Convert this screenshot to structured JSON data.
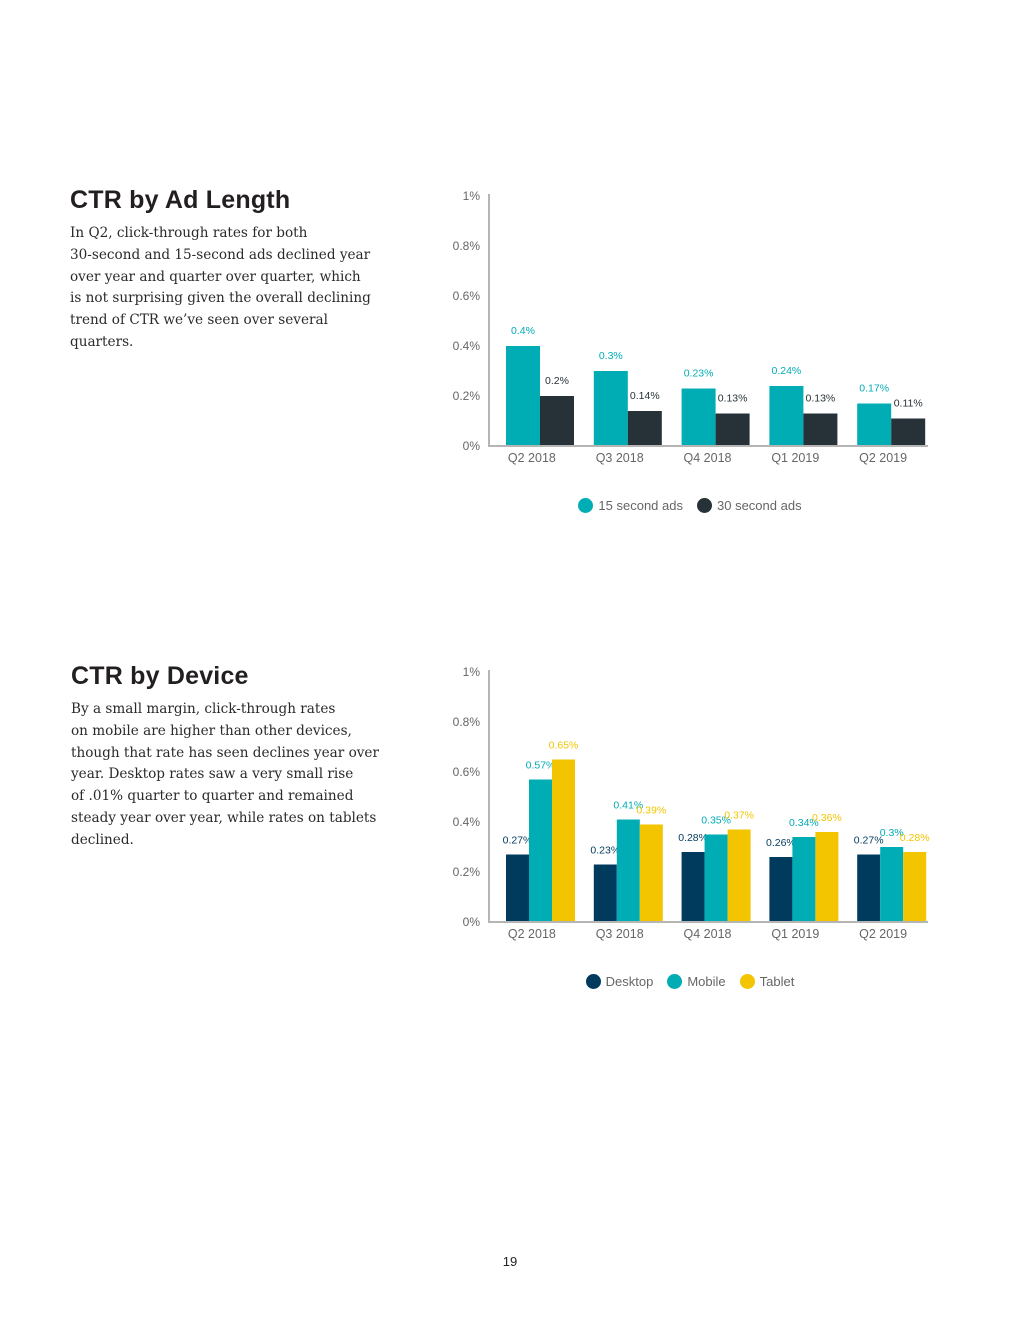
{
  "sections": [
    {
      "title": "CTR by Ad Length",
      "body": "In Q2, click-through rates for both\n30-second and 15-second ads declined year\nover year and quarter over quarter, which\nis not surprising given the overall declining\ntrend of CTR we’ve seen over several\nquarters."
    },
    {
      "title": "CTR by Device",
      "body": "By a small margin, click-through rates\non mobile are higher than other devices,\nthough that rate has seen declines year over\nyear. Desktop rates saw a very small rise\nof .01% quarter to quarter and remained\nsteady year over year, while rates on tablets\ndeclined."
    }
  ],
  "page_number": "19",
  "chart_data": [
    {
      "type": "bar",
      "title": "",
      "xlabel": "",
      "ylabel": "",
      "ylim": [
        0,
        1
      ],
      "yticks": [
        0,
        0.2,
        0.4,
        0.6,
        0.8,
        1
      ],
      "ytick_labels": [
        "0%",
        "0.2%",
        "0.4%",
        "0.6%",
        "0.8%",
        "1%"
      ],
      "categories": [
        "Q2 2018",
        "Q3 2018",
        "Q4 2018",
        "Q1 2019",
        "Q2 2019"
      ],
      "series": [
        {
          "name": "15 second ads",
          "color": "#00adb5",
          "label_color": "#00adb5",
          "values": [
            0.4,
            0.3,
            0.23,
            0.24,
            0.17
          ],
          "labels": [
            "0.4%",
            "0.3%",
            "0.23%",
            "0.24%",
            "0.17%"
          ]
        },
        {
          "name": "30 second ads",
          "color": "#263238",
          "label_color": "#263238",
          "values": [
            0.2,
            0.14,
            0.13,
            0.13,
            0.11
          ],
          "labels": [
            "0.2%",
            "0.14%",
            "0.13%",
            "0.13%",
            "0.11%"
          ]
        }
      ],
      "grid": false,
      "legend": "bottom-center"
    },
    {
      "type": "bar",
      "title": "",
      "xlabel": "",
      "ylabel": "",
      "ylim": [
        0,
        1
      ],
      "yticks": [
        0,
        0.2,
        0.4,
        0.6,
        0.8,
        1
      ],
      "ytick_labels": [
        "0%",
        "0.2%",
        "0.4%",
        "0.6%",
        "0.8%",
        "1%"
      ],
      "categories": [
        "Q2 2018",
        "Q3 2018",
        "Q4 2018",
        "Q1 2019",
        "Q2 2019"
      ],
      "series": [
        {
          "name": "Desktop",
          "color": "#003a5d",
          "label_color": "#003a5d",
          "values": [
            0.27,
            0.23,
            0.28,
            0.26,
            0.27
          ],
          "labels": [
            "0.27%",
            "0.23%",
            "0.28%",
            "0.26%",
            "0.27%"
          ]
        },
        {
          "name": "Mobile",
          "color": "#00adb5",
          "label_color": "#00adb5",
          "values": [
            0.57,
            0.41,
            0.35,
            0.34,
            0.3
          ],
          "labels": [
            "0.57%",
            "0.41%",
            "0.35%",
            "0.34%",
            "0.3%"
          ]
        },
        {
          "name": "Tablet",
          "color": "#f2c500",
          "label_color": "#f2c500",
          "values": [
            0.65,
            0.39,
            0.37,
            0.36,
            0.28
          ],
          "labels": [
            "0.65%",
            "0.39%",
            "0.37%",
            "0.36%",
            "0.28%"
          ]
        }
      ],
      "grid": false,
      "legend": "bottom-center"
    }
  ]
}
